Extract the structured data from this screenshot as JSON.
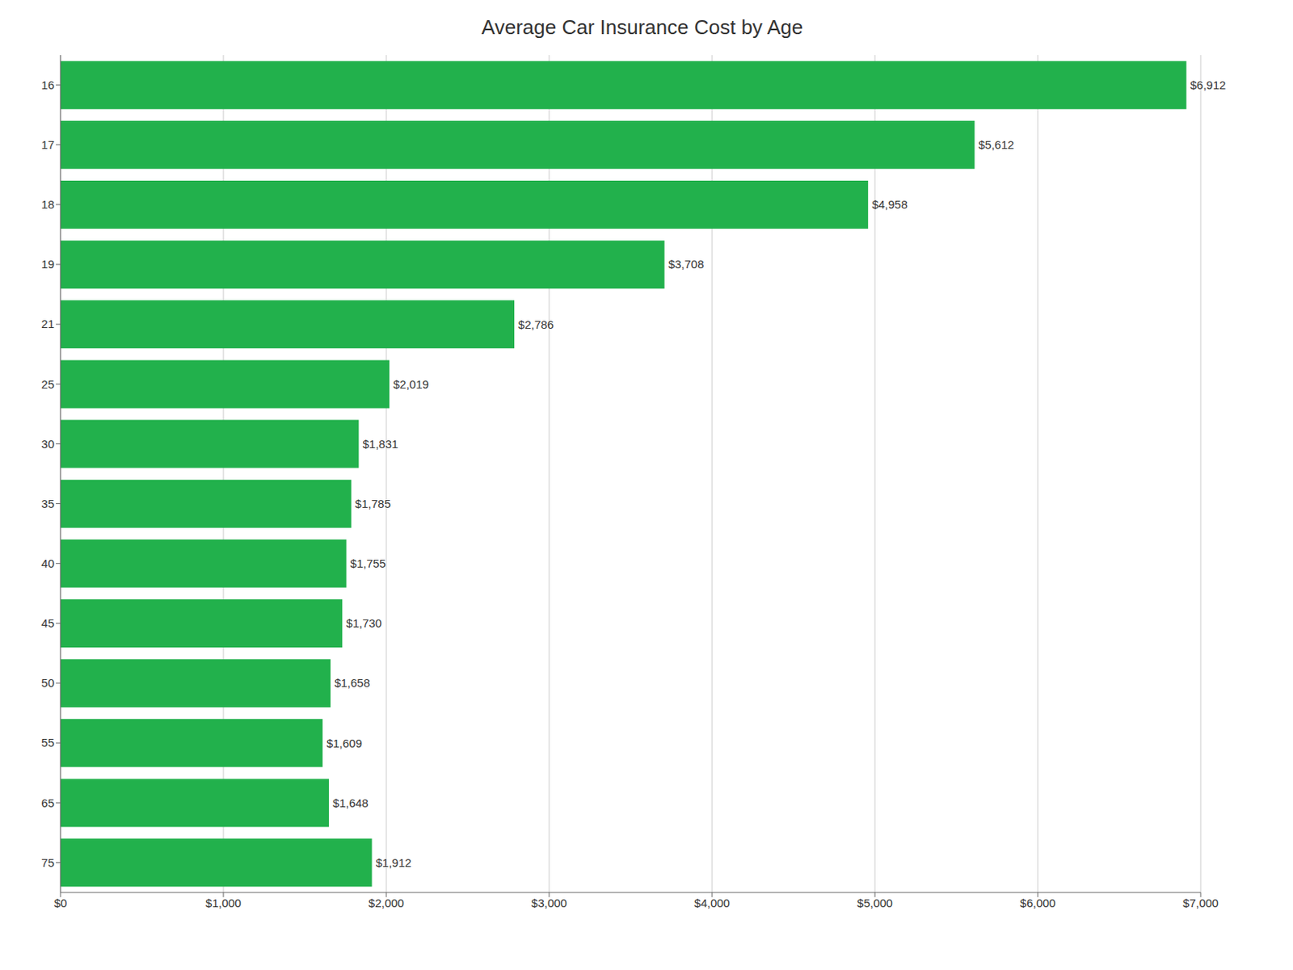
{
  "chart_data": {
    "type": "bar",
    "orientation": "horizontal",
    "title": "Average Car Insurance Cost by Age",
    "categories": [
      "16",
      "17",
      "18",
      "19",
      "21",
      "25",
      "30",
      "35",
      "40",
      "45",
      "50",
      "55",
      "65",
      "75"
    ],
    "values": [
      6912,
      5612,
      4958,
      3708,
      2786,
      2019,
      1831,
      1785,
      1755,
      1730,
      1658,
      1609,
      1648,
      1912
    ],
    "value_labels": [
      "$6,912",
      "$5,612",
      "$4,958",
      "$3,708",
      "$2,786",
      "$2,019",
      "$1,831",
      "$1,785",
      "$1,755",
      "$1,730",
      "$1,658",
      "$1,609",
      "$1,648",
      "$1,912"
    ],
    "data_labels": true,
    "color": "#22b14c",
    "xlim": [
      0,
      7000
    ],
    "xticks": [
      {
        "value": 0,
        "label": "$0"
      },
      {
        "value": 1000,
        "label": "$1,000"
      },
      {
        "value": 2000,
        "label": "$2,000"
      },
      {
        "value": 3000,
        "label": "$3,000"
      },
      {
        "value": 4000,
        "label": "$4,000"
      },
      {
        "value": 5000,
        "label": "$5,000"
      },
      {
        "value": 6000,
        "label": "$6,000"
      },
      {
        "value": 7000,
        "label": "$7,000"
      }
    ],
    "grid": true
  }
}
